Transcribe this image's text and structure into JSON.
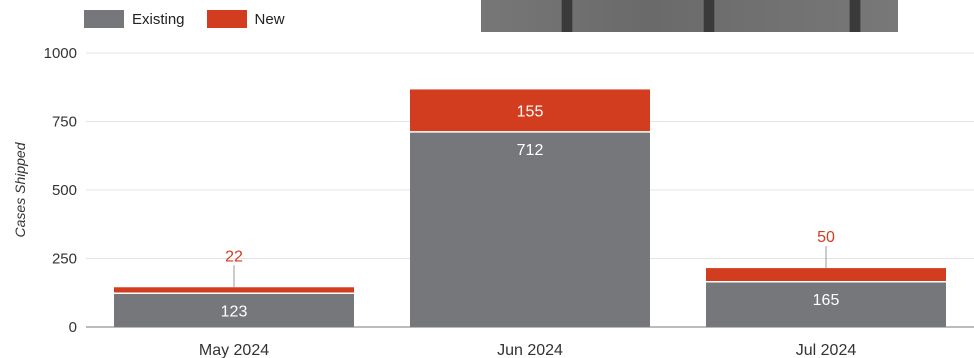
{
  "chart_data": {
    "type": "bar",
    "stacked": true,
    "categories": [
      "May 2024",
      "Jun 2024",
      "Jul 2024"
    ],
    "series": [
      {
        "name": "Existing",
        "values": [
          123,
          712,
          165
        ],
        "color": "#75777a",
        "label_color": "#ffffff"
      },
      {
        "name": "New",
        "values": [
          22,
          155,
          50
        ],
        "color": "#d23c1f",
        "label_color": "#d23c1f"
      }
    ],
    "xlabel": "",
    "ylabel": "Cases Shipped",
    "ylim": [
      0,
      1000
    ],
    "yticks": [
      0,
      250,
      500,
      750,
      1000
    ],
    "grid": true,
    "legend_position": "top-left"
  }
}
